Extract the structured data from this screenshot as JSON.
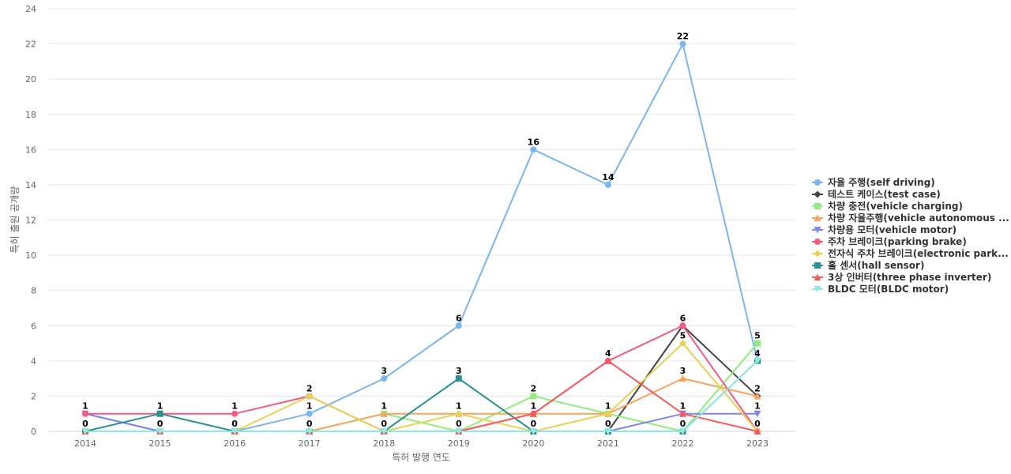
{
  "chart_data": {
    "type": "line",
    "title": "",
    "xlabel": "특허 발행 연도",
    "ylabel": "특허 출원 공개량",
    "ylim": [
      0,
      24
    ],
    "y_ticks": [
      0,
      2,
      4,
      6,
      8,
      10,
      12,
      14,
      16,
      18,
      20,
      22,
      24
    ],
    "grid": true,
    "legend_position": "right",
    "x": [
      "2014",
      "2015",
      "2016",
      "2017",
      "2018",
      "2019",
      "2020",
      "2021",
      "2022",
      "2023"
    ],
    "series": [
      {
        "name": "자율 주행(self driving)",
        "color": "#7cb5ec",
        "marker": "circle",
        "values": [
          1,
          0,
          0,
          1,
          3,
          6,
          16,
          14,
          22,
          4
        ]
      },
      {
        "name": "테스트 케이스(test case)",
        "color": "#434348",
        "marker": "diamond",
        "values": [
          0,
          0,
          0,
          0,
          0,
          0,
          0,
          0,
          6,
          2
        ]
      },
      {
        "name": "차량 충전(vehicle charging)",
        "color": "#90ed7d",
        "marker": "square",
        "values": [
          0,
          0,
          0,
          0,
          1,
          0,
          2,
          1,
          0,
          5
        ]
      },
      {
        "name": "차량 자율주행(vehicle autonomous ...",
        "color": "#f7a35c",
        "marker": "triangle",
        "values": [
          0,
          0,
          0,
          0,
          1,
          1,
          1,
          1,
          3,
          2
        ]
      },
      {
        "name": "차량용 모터(vehicle motor)",
        "color": "#8085e9",
        "marker": "triangle-down",
        "values": [
          1,
          0,
          0,
          0,
          0,
          0,
          0,
          0,
          1,
          1
        ]
      },
      {
        "name": "주차 브레이크(parking brake)",
        "color": "#f15c80",
        "marker": "circle",
        "values": [
          1,
          1,
          1,
          2,
          0,
          0,
          1,
          4,
          6,
          0
        ]
      },
      {
        "name": "전자식 주차 브레이크(electronic park...",
        "color": "#e4d354",
        "marker": "diamond",
        "values": [
          0,
          0,
          0,
          2,
          0,
          1,
          0,
          1,
          5,
          0
        ]
      },
      {
        "name": "홀 센서(hall sensor)",
        "color": "#2b908f",
        "marker": "square",
        "values": [
          0,
          1,
          0,
          0,
          0,
          3,
          0,
          0,
          0,
          4
        ]
      },
      {
        "name": "3상 인버터(three phase inverter)",
        "color": "#f45b5b",
        "marker": "triangle",
        "values": [
          0,
          0,
          0,
          0,
          0,
          0,
          1,
          4,
          1,
          0
        ]
      },
      {
        "name": "BLDC 모터(BLDC motor)",
        "color": "#91e8e1",
        "marker": "triangle-down",
        "values": [
          0,
          0,
          0,
          0,
          0,
          0,
          0,
          0,
          0,
          4
        ]
      }
    ],
    "data_labels": [
      {
        "x": "2014",
        "value": 1,
        "label": "1"
      },
      {
        "x": "2014",
        "value": 0,
        "label": "0"
      },
      {
        "x": "2015",
        "value": 1,
        "label": "1"
      },
      {
        "x": "2015",
        "value": 0,
        "label": "0"
      },
      {
        "x": "2016",
        "value": 1,
        "label": "1"
      },
      {
        "x": "2016",
        "value": 0,
        "label": "0"
      },
      {
        "x": "2017",
        "value": 2,
        "label": "2"
      },
      {
        "x": "2017",
        "value": 1,
        "label": "1"
      },
      {
        "x": "2017",
        "value": 0,
        "label": "0"
      },
      {
        "x": "2018",
        "value": 3,
        "label": "3"
      },
      {
        "x": "2018",
        "value": 1,
        "label": "1"
      },
      {
        "x": "2018",
        "value": 0,
        "label": "0"
      },
      {
        "x": "2019",
        "value": 6,
        "label": "6"
      },
      {
        "x": "2019",
        "value": 3,
        "label": "3"
      },
      {
        "x": "2019",
        "value": 1,
        "label": "1"
      },
      {
        "x": "2019",
        "value": 0,
        "label": "0"
      },
      {
        "x": "2020",
        "value": 16,
        "label": "16"
      },
      {
        "x": "2020",
        "value": 2,
        "label": "2"
      },
      {
        "x": "2020",
        "value": 1,
        "label": "1"
      },
      {
        "x": "2020",
        "value": 0,
        "label": "0"
      },
      {
        "x": "2021",
        "value": 14,
        "label": "14"
      },
      {
        "x": "2021",
        "value": 4,
        "label": "4"
      },
      {
        "x": "2021",
        "value": 1,
        "label": "1"
      },
      {
        "x": "2021",
        "value": 0,
        "label": "0"
      },
      {
        "x": "2022",
        "value": 22,
        "label": "22"
      },
      {
        "x": "2022",
        "value": 6,
        "label": "6"
      },
      {
        "x": "2022",
        "value": 5,
        "label": "5"
      },
      {
        "x": "2022",
        "value": 3,
        "label": "3"
      },
      {
        "x": "2022",
        "value": 1,
        "label": "1"
      },
      {
        "x": "2022",
        "value": 0,
        "label": "0"
      },
      {
        "x": "2023",
        "value": 5,
        "label": "5"
      },
      {
        "x": "2023",
        "value": 4,
        "label": "4"
      },
      {
        "x": "2023",
        "value": 2,
        "label": "2"
      },
      {
        "x": "2023",
        "value": 1,
        "label": "1"
      },
      {
        "x": "2023",
        "value": 0,
        "label": "0"
      }
    ]
  }
}
